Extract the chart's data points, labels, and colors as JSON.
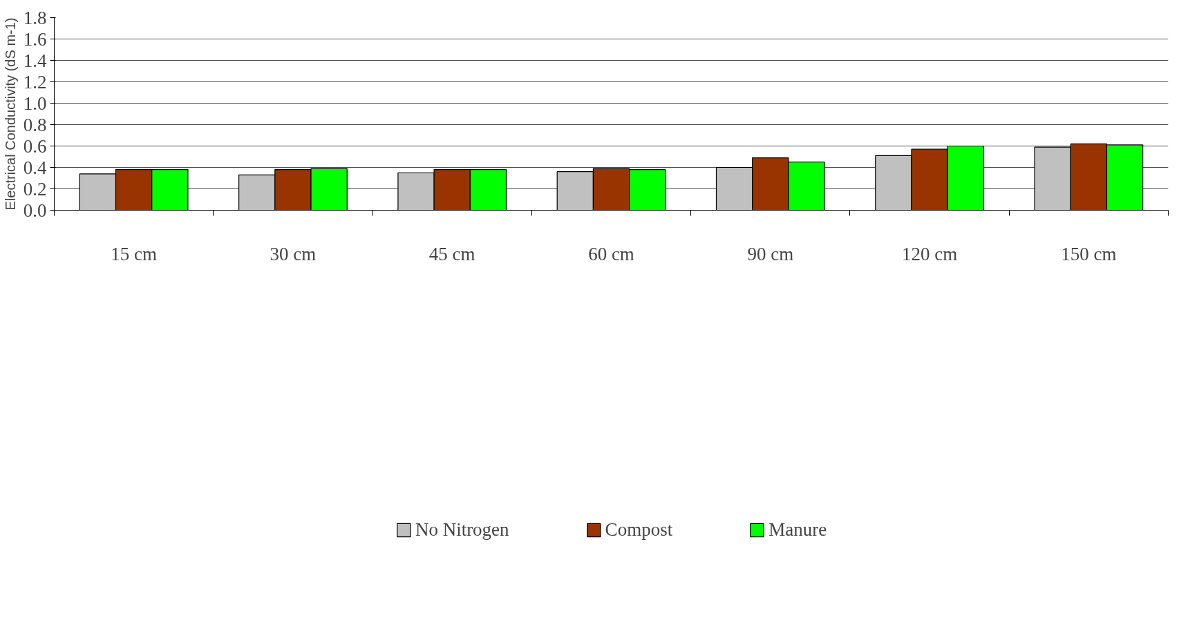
{
  "chart_data": {
    "type": "bar",
    "ylabel": "Electrical Conductivity (dS m-1)",
    "categories": [
      "15 cm",
      "30 cm",
      "45 cm",
      "60 cm",
      "90 cm",
      "120 cm",
      "150 cm"
    ],
    "series": [
      {
        "name": "No Nitrogen",
        "color": "#c0c0c0",
        "values": [
          0.34,
          0.33,
          0.35,
          0.36,
          0.4,
          0.51,
          0.59
        ]
      },
      {
        "name": "Compost",
        "color": "#993300",
        "values": [
          0.38,
          0.38,
          0.38,
          0.39,
          0.49,
          0.57,
          0.62
        ]
      },
      {
        "name": "Manure",
        "color": "#00ff00",
        "values": [
          0.38,
          0.39,
          0.38,
          0.38,
          0.45,
          0.6,
          0.61
        ]
      }
    ],
    "ylim": [
      0,
      1.8
    ],
    "yticks": [
      {
        "value": 0,
        "label": "0.0"
      },
      {
        "value": 0.2,
        "label": "0.2"
      },
      {
        "value": 0.4,
        "label": "0.4"
      },
      {
        "value": 0.6,
        "label": "0.6"
      },
      {
        "value": 0.8,
        "label": "0.8"
      },
      {
        "value": 1.0,
        "label": "1.0"
      },
      {
        "value": 1.2,
        "label": "1.2"
      },
      {
        "value": 1.4,
        "label": "1.4"
      },
      {
        "value": 1.6,
        "label": "1.6"
      },
      {
        "value": 1.8,
        "label": "1.8"
      }
    ],
    "grid": "y",
    "legend": "bottom"
  }
}
